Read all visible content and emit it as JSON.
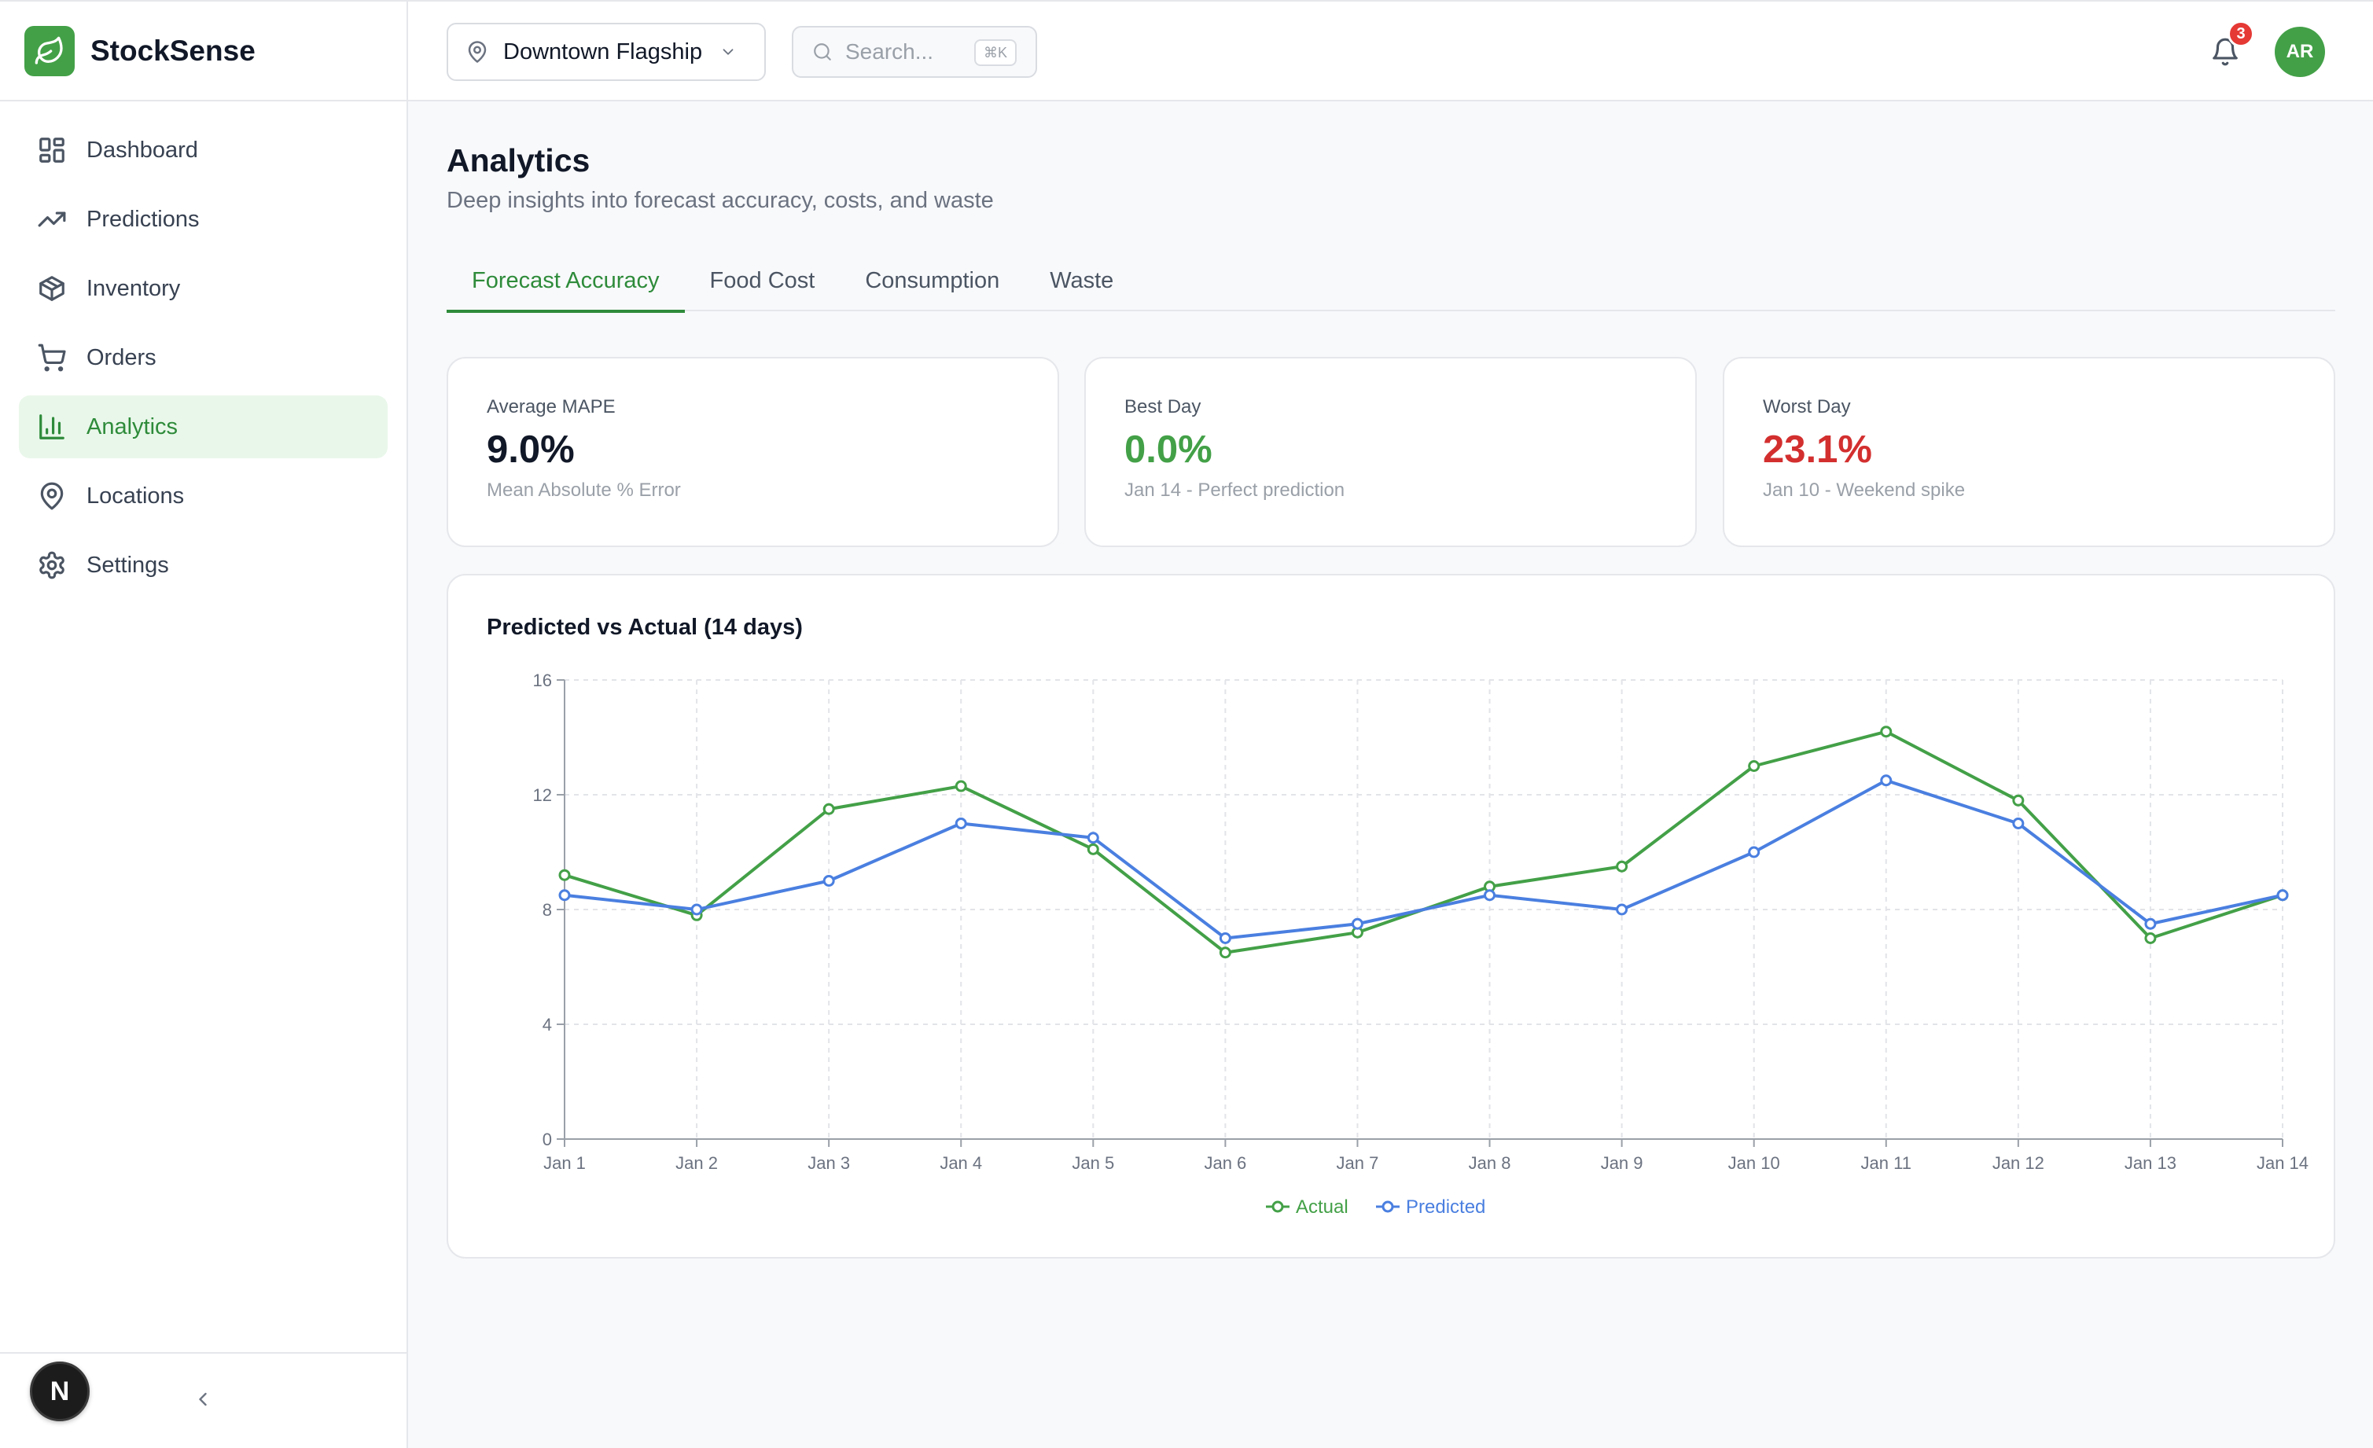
{
  "app": {
    "name": "StockSense"
  },
  "sidebar": {
    "items": [
      {
        "label": "Dashboard",
        "icon": "dashboard-icon",
        "active": false
      },
      {
        "label": "Predictions",
        "icon": "trending-up-icon",
        "active": false
      },
      {
        "label": "Inventory",
        "icon": "package-icon",
        "active": false
      },
      {
        "label": "Orders",
        "icon": "cart-icon",
        "active": false
      },
      {
        "label": "Analytics",
        "icon": "bar-chart-icon",
        "active": true
      },
      {
        "label": "Locations",
        "icon": "map-pin-icon",
        "active": false
      },
      {
        "label": "Settings",
        "icon": "gear-icon",
        "active": false
      }
    ],
    "footer_badge": "N"
  },
  "topbar": {
    "location": "Downtown Flagship",
    "search_placeholder": "Search...",
    "search_shortcut": "⌘K",
    "notification_count": "3",
    "avatar_initials": "AR"
  },
  "page": {
    "title": "Analytics",
    "subtitle": "Deep insights into forecast accuracy, costs, and waste"
  },
  "tabs": [
    {
      "label": "Forecast Accuracy",
      "active": true
    },
    {
      "label": "Food Cost",
      "active": false
    },
    {
      "label": "Consumption",
      "active": false
    },
    {
      "label": "Waste",
      "active": false
    }
  ],
  "kpis": {
    "average": {
      "label": "Average MAPE",
      "value": "9.0%",
      "note": "Mean Absolute % Error"
    },
    "best": {
      "label": "Best Day",
      "value": "0.0%",
      "note": "Jan 14 - Perfect prediction"
    },
    "worst": {
      "label": "Worst Day",
      "value": "23.1%",
      "note": "Jan 10 - Weekend spike"
    }
  },
  "colors": {
    "accent": "#2e8b3a",
    "actual": "#43a047",
    "predicted": "#4a7fe0",
    "danger": "#d32f2f"
  },
  "chart_data": {
    "type": "line",
    "title": "Predicted vs Actual (14 days)",
    "categories": [
      "Jan 1",
      "Jan 2",
      "Jan 3",
      "Jan 4",
      "Jan 5",
      "Jan 6",
      "Jan 7",
      "Jan 8",
      "Jan 9",
      "Jan 10",
      "Jan 11",
      "Jan 12",
      "Jan 13",
      "Jan 14"
    ],
    "series": [
      {
        "name": "Actual",
        "color": "#43a047",
        "values": [
          9.2,
          7.8,
          11.5,
          12.3,
          10.1,
          6.5,
          7.2,
          8.8,
          9.5,
          13.0,
          14.2,
          11.8,
          7.0,
          8.5
        ]
      },
      {
        "name": "Predicted",
        "color": "#4a7fe0",
        "values": [
          8.5,
          8.0,
          9.0,
          11.0,
          10.5,
          7.0,
          7.5,
          8.5,
          8.0,
          10.0,
          12.5,
          11.0,
          7.5,
          8.5
        ]
      }
    ],
    "yticks": [
      0,
      4,
      8,
      12,
      16
    ],
    "ylim": [
      0,
      16
    ],
    "grid": true,
    "legend": "bottom-center"
  }
}
